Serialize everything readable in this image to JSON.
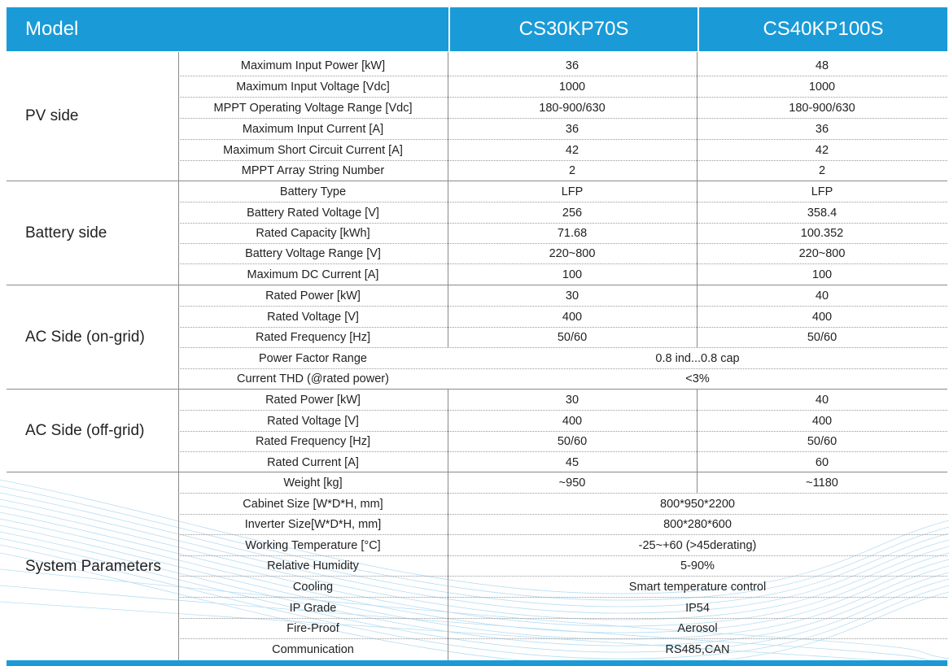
{
  "header": {
    "model_label": "Model",
    "col1": "CS30KP70S",
    "col2": "CS40KP100S"
  },
  "sections": {
    "pv": {
      "label": "PV side",
      "rows": [
        {
          "param": "Maximum Input Power [kW]",
          "v1": "36",
          "v2": "48"
        },
        {
          "param": "Maximum Input Voltage [Vdc]",
          "v1": "1000",
          "v2": "1000"
        },
        {
          "param": "MPPT Operating Voltage Range [Vdc]",
          "v1": "180-900/630",
          "v2": "180-900/630"
        },
        {
          "param": "Maximum Input Current [A]",
          "v1": "36",
          "v2": "36"
        },
        {
          "param": "Maximum Short Circuit Current [A]",
          "v1": "42",
          "v2": "42"
        },
        {
          "param": "MPPT Array String Number",
          "v1": "2",
          "v2": "2"
        }
      ]
    },
    "battery": {
      "label": "Battery side",
      "rows": [
        {
          "param": "Battery Type",
          "v1": "LFP",
          "v2": "LFP"
        },
        {
          "param": "Battery Rated Voltage [V]",
          "v1": "256",
          "v2": "358.4"
        },
        {
          "param": "Rated Capacity [kWh]",
          "v1": "71.68",
          "v2": "100.352"
        },
        {
          "param": "Battery Voltage Range [V]",
          "v1": "220~800",
          "v2": "220~800"
        },
        {
          "param": "Maximum DC Current [A]",
          "v1": "100",
          "v2": "100"
        }
      ]
    },
    "ac_on": {
      "label": "AC Side (on-grid)",
      "rows": [
        {
          "param": "Rated Power [kW]",
          "v1": "30",
          "v2": "40"
        },
        {
          "param": "Rated Voltage [V]",
          "v1": "400",
          "v2": "400"
        },
        {
          "param": "Rated Frequency [Hz]",
          "v1": "50/60",
          "v2": "50/60"
        },
        {
          "param": "Power Factor Range",
          "shared": "0.8 ind...0.8 cap"
        },
        {
          "param": "Current THD (@rated power)",
          "shared": "<3%"
        }
      ]
    },
    "ac_off": {
      "label": "AC Side (off-grid)",
      "rows": [
        {
          "param": "Rated Power [kW]",
          "v1": "30",
          "v2": "40"
        },
        {
          "param": "Rated Voltage [V]",
          "v1": "400",
          "v2": "400"
        },
        {
          "param": "Rated Frequency [Hz]",
          "v1": "50/60",
          "v2": "50/60"
        },
        {
          "param": "Rated Current [A]",
          "v1": "45",
          "v2": "60"
        }
      ]
    },
    "system": {
      "label": "System Parameters",
      "rows": [
        {
          "param": "Weight [kg]",
          "v1": "~950",
          "v2": "~1180"
        },
        {
          "param": "Cabinet Size [W*D*H, mm]",
          "shared": "800*950*2200"
        },
        {
          "param": "Inverter Size[W*D*H, mm]",
          "shared": "800*280*600"
        },
        {
          "param": "Working Temperature [°C]",
          "shared": "-25~+60 (>45derating)"
        },
        {
          "param": "Relative Humidity",
          "shared": "5-90%"
        },
        {
          "param": "Cooling",
          "shared": "Smart temperature control"
        },
        {
          "param": "IP Grade",
          "shared": "IP54"
        },
        {
          "param": "Fire-Proof",
          "shared": "Aerosol"
        },
        {
          "param": "Communication",
          "shared": "RS485,CAN"
        }
      ]
    }
  },
  "colors": {
    "header_bg": "#1a9bd7",
    "wave": "#7cc3ea"
  }
}
